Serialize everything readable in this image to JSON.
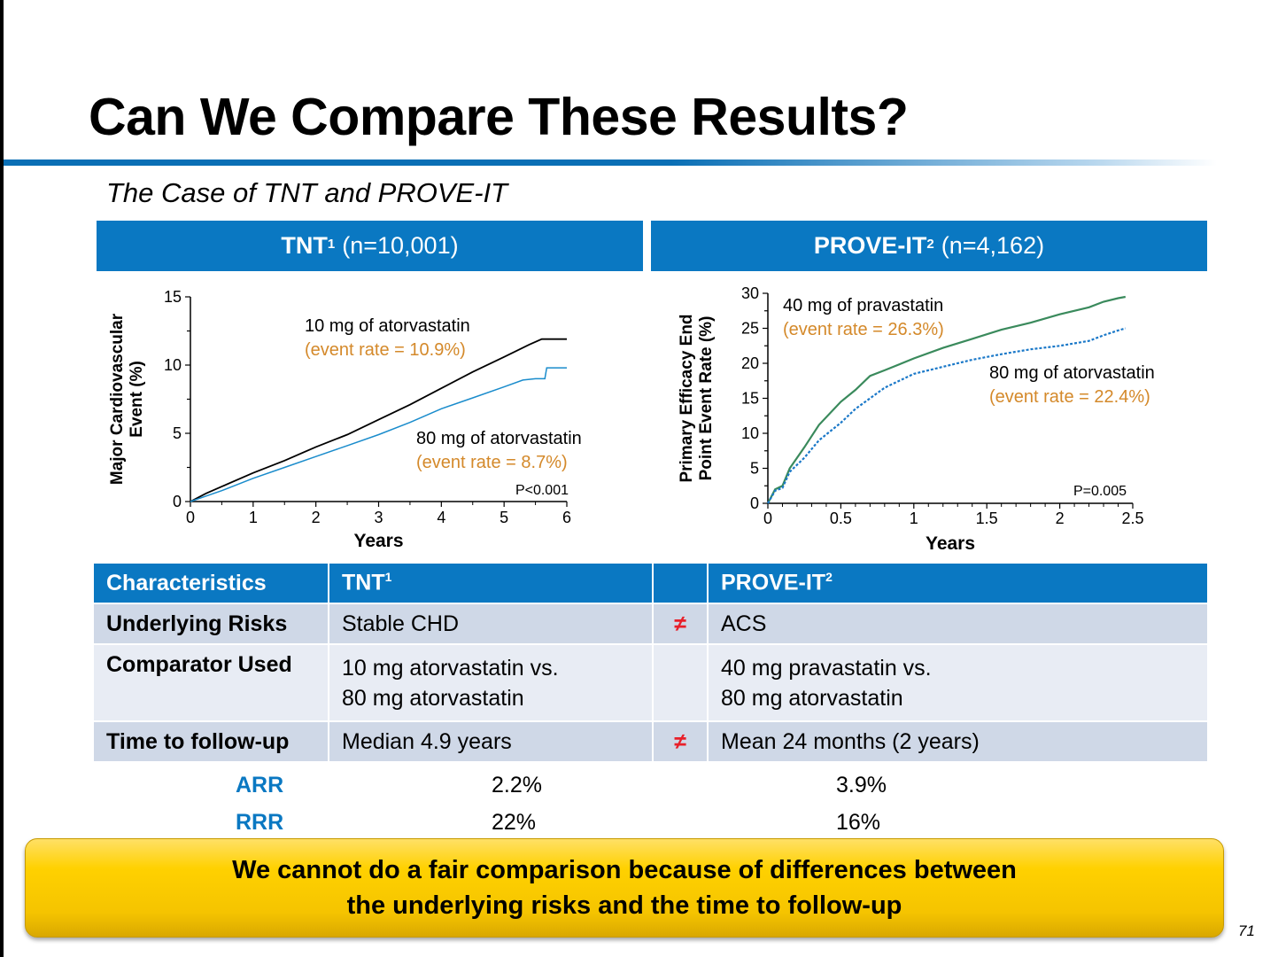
{
  "slide": {
    "title": "Can We Compare These Results?",
    "subtitle": "The Case of TNT and PROVE-IT",
    "page_number": "71"
  },
  "panels": {
    "tnt": {
      "name": "TNT",
      "sup": "1",
      "n": "(n=10,001)"
    },
    "prove": {
      "name": "PROVE-IT",
      "sup": "2",
      "n": "(n=4,162)"
    }
  },
  "colors": {
    "header_blue": "#0a78c2",
    "annotation_orange": "#d4892a",
    "tnt_low_dose": "#000000",
    "tnt_high_dose": "#1a8ccc",
    "prove_pravastatin": "#3a8a5c",
    "prove_atorvastatin": "#1a78c8",
    "neq_red": "#e8202a",
    "callout_yellow": "#ffd100"
  },
  "chart_data": [
    {
      "type": "line",
      "ylabel": "Major Cardiovascular Event (%)",
      "xlabel": "Years",
      "xlim": [
        0,
        6
      ],
      "ylim": [
        0,
        15
      ],
      "x_ticks": [
        "0",
        "1",
        "2",
        "3",
        "4",
        "5",
        "6"
      ],
      "y_ticks": [
        "0",
        "5",
        "10",
        "15"
      ],
      "p_value": "P<0.001",
      "series": [
        {
          "name": "10 mg of atorvastatin",
          "note": "(event rate  = 10.9%)",
          "points": [
            [
              0,
              0
            ],
            [
              0.25,
              0.6
            ],
            [
              0.5,
              1.1
            ],
            [
              1,
              2.1
            ],
            [
              1.5,
              3.0
            ],
            [
              2,
              4.0
            ],
            [
              2.5,
              4.9
            ],
            [
              3,
              6.0
            ],
            [
              3.5,
              7.1
            ],
            [
              4,
              8.3
            ],
            [
              4.5,
              9.5
            ],
            [
              5,
              10.6
            ],
            [
              5.4,
              11.5
            ],
            [
              5.6,
              11.9
            ],
            [
              6,
              11.9
            ]
          ]
        },
        {
          "name": "80 mg of atorvastatin",
          "note": "(event rate = 8.7%)",
          "points": [
            [
              0,
              0
            ],
            [
              0.25,
              0.4
            ],
            [
              0.5,
              0.8
            ],
            [
              1,
              1.7
            ],
            [
              1.5,
              2.5
            ],
            [
              2,
              3.3
            ],
            [
              2.5,
              4.1
            ],
            [
              3,
              4.9
            ],
            [
              3.5,
              5.8
            ],
            [
              4,
              6.8
            ],
            [
              4.5,
              7.6
            ],
            [
              5,
              8.4
            ],
            [
              5.3,
              8.9
            ],
            [
              5.5,
              9.0
            ],
            [
              5.65,
              9.0
            ],
            [
              5.68,
              9.8
            ],
            [
              6,
              9.8
            ]
          ]
        }
      ]
    },
    {
      "type": "line",
      "ylabel": "Primary Efficacy End Point Event Rate (%)",
      "xlabel": "Years",
      "xlim": [
        0,
        2.5
      ],
      "ylim": [
        0,
        30
      ],
      "x_ticks": [
        "0",
        "0.5",
        "1",
        "1.5",
        "2",
        "2.5"
      ],
      "y_ticks": [
        "0",
        "5",
        "10",
        "15",
        "20",
        "25",
        "30"
      ],
      "p_value": "P=0.005",
      "series": [
        {
          "name": "40 mg of pravastatin",
          "note": "(event rate  = 26.3%)",
          "points": [
            [
              0,
              0
            ],
            [
              0.05,
              2
            ],
            [
              0.1,
              2.5
            ],
            [
              0.15,
              5
            ],
            [
              0.25,
              8
            ],
            [
              0.35,
              11.2
            ],
            [
              0.5,
              14.5
            ],
            [
              0.6,
              16.2
            ],
            [
              0.7,
              18.2
            ],
            [
              0.8,
              19
            ],
            [
              1,
              20.7
            ],
            [
              1.2,
              22.2
            ],
            [
              1.4,
              23.5
            ],
            [
              1.6,
              24.8
            ],
            [
              1.8,
              25.8
            ],
            [
              2,
              27
            ],
            [
              2.2,
              28
            ],
            [
              2.3,
              28.8
            ],
            [
              2.4,
              29.3
            ],
            [
              2.45,
              29.5
            ]
          ]
        },
        {
          "name": "80 mg of atorvastatin",
          "note": "(event rate = 22.4%)",
          "points": [
            [
              0,
              0
            ],
            [
              0.05,
              1.8
            ],
            [
              0.1,
              2.2
            ],
            [
              0.15,
              4.5
            ],
            [
              0.25,
              6.5
            ],
            [
              0.35,
              9
            ],
            [
              0.5,
              11.5
            ],
            [
              0.6,
              13.5
            ],
            [
              0.7,
              15
            ],
            [
              0.8,
              16.5
            ],
            [
              1,
              18.5
            ],
            [
              1.2,
              19.5
            ],
            [
              1.4,
              20.5
            ],
            [
              1.6,
              21.3
            ],
            [
              1.8,
              22
            ],
            [
              2,
              22.5
            ],
            [
              2.2,
              23.2
            ],
            [
              2.3,
              24
            ],
            [
              2.4,
              24.7
            ],
            [
              2.45,
              25
            ]
          ]
        }
      ]
    }
  ],
  "table": {
    "headers": {
      "c1": "Characteristics",
      "c2": "TNT",
      "c2_sup": "1",
      "c3": "",
      "c4": "PROVE-IT",
      "c4_sup": "2"
    },
    "rows": [
      {
        "label": "Underlying Risks",
        "tnt": "Stable CHD",
        "sign": "≠",
        "prove": "ACS"
      },
      {
        "label": "Comparator Used",
        "tnt_line1": "10 mg atorvastatin vs.",
        "tnt_line2": "80 mg atorvastatin",
        "sign": "",
        "prove_line1": "40 mg pravastatin vs.",
        "prove_line2": "80 mg atorvastatin"
      },
      {
        "label": "Time to follow-up",
        "tnt": "Median 4.9 years",
        "sign": "≠",
        "prove": "Mean 24 months (2 years)"
      }
    ]
  },
  "metrics": {
    "arr": {
      "label": "ARR",
      "tnt": "2.2%",
      "prove": "3.9%"
    },
    "rrr": {
      "label": "RRR",
      "tnt": "22%",
      "prove": "16%"
    }
  },
  "callout": {
    "line1": "We cannot do a fair comparison because of differences between",
    "line2": "the underlying risks and the time to follow-up"
  }
}
